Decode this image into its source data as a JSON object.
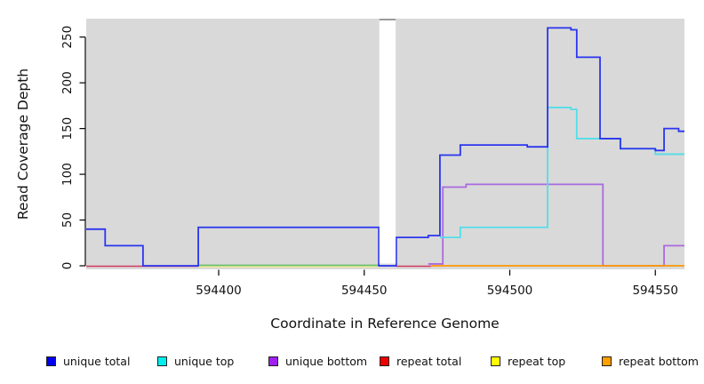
{
  "chart_data": {
    "type": "step-line",
    "title": "",
    "xlabel": "Coordinate in Reference Genome",
    "ylabel": "Read Coverage Depth",
    "x_ticks": [
      594400,
      594450,
      594500,
      594550
    ],
    "y_ticks": [
      0,
      50,
      100,
      150,
      200,
      250
    ],
    "xlim": [
      594354.5,
      594560
    ],
    "ylim": [
      0,
      274
    ],
    "plot_bg": "#d9d9d9",
    "masked_gap": {
      "from": 594455.2,
      "to": 594460.8
    },
    "series": [
      {
        "name": "unique bottom",
        "color": "#a96ae0",
        "points": [
          [
            594472,
            2
          ],
          [
            594477,
            86
          ],
          [
            594485,
            89
          ],
          [
            594532,
            0
          ],
          [
            594553,
            22
          ],
          [
            594560,
            22
          ]
        ]
      },
      {
        "name": "unique top",
        "color": "#54dde8",
        "points": [
          [
            594476,
            31
          ],
          [
            594483,
            42
          ],
          [
            594513,
            173
          ],
          [
            594521,
            171
          ],
          [
            594523,
            139
          ],
          [
            594538,
            128
          ],
          [
            594550,
            122
          ],
          [
            594560,
            122
          ]
        ]
      },
      {
        "name": "unique total",
        "color": "#2a35ee",
        "points": [
          [
            594354.5,
            40
          ],
          [
            594361,
            22
          ],
          [
            594374,
            0
          ],
          [
            594393,
            42
          ],
          [
            594455,
            0
          ],
          [
            594461,
            31
          ],
          [
            594472,
            33
          ],
          [
            594476,
            121
          ],
          [
            594483,
            132
          ],
          [
            594506,
            130
          ],
          [
            594513,
            260
          ],
          [
            594521,
            258
          ],
          [
            594523,
            228
          ],
          [
            594531,
            139
          ],
          [
            594538,
            128
          ],
          [
            594550,
            126
          ],
          [
            594553,
            150
          ],
          [
            594558,
            147
          ],
          [
            594560,
            147
          ]
        ]
      },
      {
        "name": "repeat bottom",
        "color": "#ff9800",
        "points": [
          [
            594473,
            0
          ],
          [
            594560,
            0
          ]
        ]
      }
    ],
    "baseline_segments": [
      {
        "from": 594354.5,
        "to": 594393,
        "color": "#d23b5e",
        "dy": 0.5
      },
      {
        "from": 594393,
        "to": 594455,
        "color": "#e8e89a",
        "dy": 1.2
      },
      {
        "from": 594393,
        "to": 594455,
        "color": "#6abf69",
        "dy": -0.6
      },
      {
        "from": 594455,
        "to": 594461,
        "color": "#7a5ae0",
        "dy": 0
      },
      {
        "from": 594461,
        "to": 594473,
        "color": "#d23b5e",
        "dy": 0.5
      }
    ]
  },
  "legend": {
    "items": [
      {
        "label": "unique total",
        "color": "#0000ee"
      },
      {
        "label": "unique top",
        "color": "#00eeee"
      },
      {
        "label": "unique bottom",
        "color": "#a020f0"
      },
      {
        "label": "repeat total",
        "color": "#ee0000"
      },
      {
        "label": "repeat top",
        "color": "#ffff00"
      },
      {
        "label": "repeat bottom",
        "color": "#ffa000"
      }
    ]
  }
}
